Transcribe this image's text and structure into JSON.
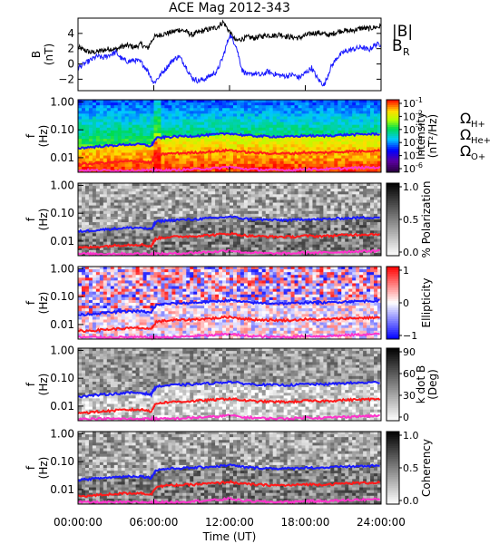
{
  "title": "ACE Mag 2012-343",
  "x_axis": {
    "label": "Time (UT)",
    "ticks": [
      "00:00:00",
      "06:00:00",
      "12:00:00",
      "18:00:00",
      "24:00:00"
    ],
    "tick_hours": [
      0,
      6,
      12,
      18,
      24
    ]
  },
  "colors": {
    "B": "#000000",
    "BR": "#1a1aff",
    "H": "#1a1aff",
    "He": "#ff1a1a",
    "O": "#ff33cc"
  },
  "chart_data": [
    {
      "type": "line",
      "name": "B",
      "ylabel": "B (nT)",
      "ylabel_parts": [
        "B",
        "(nT)"
      ],
      "ylim": [
        -3.5,
        6
      ],
      "yticks": [
        -2,
        0,
        2,
        4
      ],
      "legend": [
        {
          "text": "|B|",
          "color": "#000000"
        },
        {
          "text": "B",
          "sub": "R",
          "color": "#1a1aff"
        }
      ],
      "series": [
        {
          "name": "|B|",
          "color": "#000000",
          "x": [
            0,
            0.5,
            1,
            1.5,
            2,
            2.5,
            3,
            3.5,
            4,
            4.5,
            5,
            5.5,
            6,
            6.5,
            7,
            7.5,
            8,
            8.5,
            9,
            9.5,
            10,
            10.5,
            11,
            11.5,
            12,
            12.5,
            13,
            13.5,
            14,
            14.5,
            15,
            15.5,
            16,
            16.5,
            17,
            17.5,
            18,
            18.5,
            19,
            19.5,
            20,
            20.5,
            21,
            21.5,
            22,
            22.5,
            23,
            23.5,
            24
          ],
          "y": [
            2.2,
            1.8,
            1.5,
            1.6,
            1.8,
            2.0,
            1.9,
            2.3,
            2.4,
            2.2,
            2.6,
            2.0,
            3.5,
            3.8,
            4.0,
            4.2,
            4.5,
            4.3,
            3.8,
            4.1,
            4.4,
            4.6,
            4.8,
            5.5,
            4.2,
            3.0,
            3.3,
            3.5,
            3.4,
            3.6,
            3.8,
            3.7,
            3.9,
            3.6,
            3.5,
            3.4,
            3.7,
            4.0,
            4.1,
            3.9,
            3.8,
            4.2,
            4.4,
            4.3,
            4.5,
            4.7,
            4.6,
            4.8,
            4.9
          ]
        },
        {
          "name": "B_R",
          "color": "#1a1aff",
          "x": [
            0,
            0.5,
            1,
            1.5,
            2,
            2.5,
            3,
            3.5,
            4,
            4.5,
            5,
            5.5,
            6,
            6.5,
            7,
            7.5,
            8,
            8.5,
            9,
            9.5,
            10,
            10.5,
            11,
            11.5,
            12,
            12.5,
            13,
            13.5,
            14,
            14.5,
            15,
            15.5,
            16,
            16.5,
            17,
            17.5,
            18,
            18.5,
            19,
            19.5,
            20,
            20.5,
            21,
            21.5,
            22,
            22.5,
            23,
            23.5,
            24
          ],
          "y": [
            -0.5,
            0.0,
            0.5,
            1.0,
            0.8,
            1.2,
            1.5,
            0.6,
            0.3,
            0.5,
            0.2,
            -0.8,
            -2.5,
            -1.5,
            -0.5,
            0.5,
            1.0,
            -0.2,
            -1.8,
            -2.2,
            -2.0,
            -1.5,
            -1.0,
            1.0,
            3.8,
            2.5,
            -0.8,
            -1.5,
            -1.2,
            -1.5,
            -1.0,
            -1.3,
            -1.5,
            -1.6,
            -1.4,
            -1.8,
            -1.2,
            -0.5,
            -2.0,
            -2.8,
            -0.5,
            0.8,
            1.5,
            1.8,
            2.0,
            2.2,
            1.8,
            2.5,
            2.6
          ]
        }
      ]
    },
    {
      "type": "heatmap",
      "name": "Intensity",
      "ylabel_parts": [
        "f",
        "(Hz)"
      ],
      "ylim": [
        0.003,
        1.2
      ],
      "yscale": "log",
      "yticks": [
        1.0,
        0.1,
        0.01
      ],
      "ytick_labels": [
        "1.00",
        "0.10",
        "0.01"
      ],
      "colorbar": {
        "label": "Intensity (nT²/Hz)",
        "label_parts": [
          "Intensity",
          "(nT²/Hz)"
        ],
        "palette": "rainbow",
        "scale": "log",
        "range": [
          1e-06,
          0.1
        ],
        "ticks": [
          {
            "base": "10",
            "exp": "-1"
          },
          {
            "base": "10",
            "exp": "-2"
          },
          {
            "base": "10",
            "exp": "-3"
          },
          {
            "base": "10",
            "exp": "-4"
          },
          {
            "base": "10",
            "exp": "-5"
          },
          {
            "base": "10",
            "exp": "-6"
          }
        ]
      },
      "legend": [
        {
          "text": "Ω",
          "sub": "H+",
          "color": "#1a1aff"
        },
        {
          "text": "Ω",
          "sub": "He+",
          "color": "#ff1a1a"
        },
        {
          "text": "Ω",
          "sub": "O+",
          "color": "#ff33cc"
        }
      ]
    },
    {
      "type": "heatmap",
      "name": "% Polarization",
      "ylabel_parts": [
        "f",
        "(Hz)"
      ],
      "yscale": "log",
      "yticks": [
        1.0,
        0.1,
        0.01
      ],
      "ytick_labels": [
        "1.00",
        "0.10",
        "0.01"
      ],
      "colorbar": {
        "label": "% Polarization",
        "label_parts": [
          "% Polarization"
        ],
        "palette": "gray",
        "range": [
          0,
          1
        ],
        "ticks": [
          {
            "base": "1.0"
          },
          {
            "base": "0.5"
          },
          {
            "base": "0.0"
          }
        ]
      }
    },
    {
      "type": "heatmap",
      "name": "Ellipticity",
      "ylabel_parts": [
        "f",
        "(Hz)"
      ],
      "yscale": "log",
      "yticks": [
        1.0,
        0.1,
        0.01
      ],
      "ytick_labels": [
        "1.00",
        "0.10",
        "0.01"
      ],
      "colorbar": {
        "label": "Ellipticity",
        "label_parts": [
          "Ellipticity"
        ],
        "palette": "bwr",
        "range": [
          -1,
          1
        ],
        "ticks": [
          {
            "base": "1"
          },
          {
            "base": "0"
          },
          {
            "base": "−1"
          }
        ]
      }
    },
    {
      "type": "heatmap",
      "name": "k dot B",
      "ylabel_parts": [
        "f",
        "(Hz)"
      ],
      "yscale": "log",
      "yticks": [
        1.0,
        0.1,
        0.01
      ],
      "ytick_labels": [
        "1.00",
        "0.10",
        "0.01"
      ],
      "colorbar": {
        "label": "k dot B (Deg)",
        "label_parts": [
          "k dot B",
          "(Deg)"
        ],
        "palette": "gray_inv",
        "range": [
          0,
          90
        ],
        "ticks": [
          {
            "base": "90"
          },
          {
            "base": "60"
          },
          {
            "base": "30"
          },
          {
            "base": "0"
          }
        ]
      }
    },
    {
      "type": "heatmap",
      "name": "Coherency",
      "ylabel_parts": [
        "f",
        "(Hz)"
      ],
      "yscale": "log",
      "yticks": [
        1.0,
        0.1,
        0.01
      ],
      "ytick_labels": [
        "1.00",
        "0.10",
        "0.01"
      ],
      "colorbar": {
        "label": "Coherency",
        "label_parts": [
          "Coherency"
        ],
        "palette": "gray",
        "range": [
          0,
          1
        ],
        "ticks": [
          {
            "base": "1.0"
          },
          {
            "base": "0.5"
          },
          {
            "base": "0.0"
          }
        ]
      }
    }
  ],
  "gyrofrequency_overlays": {
    "x": [
      0,
      1,
      2,
      3,
      4,
      5,
      5.8,
      6.2,
      7,
      8,
      9,
      10,
      11,
      12,
      13,
      14,
      15,
      16,
      17,
      18,
      19,
      20,
      21,
      22,
      23,
      24
    ],
    "H": [
      0.022,
      0.024,
      0.026,
      0.028,
      0.03,
      0.03,
      0.026,
      0.05,
      0.055,
      0.058,
      0.06,
      0.064,
      0.068,
      0.075,
      0.065,
      0.06,
      0.058,
      0.057,
      0.057,
      0.062,
      0.06,
      0.062,
      0.066,
      0.068,
      0.07,
      0.072
    ],
    "He": [
      0.0058,
      0.006,
      0.0065,
      0.007,
      0.0074,
      0.0075,
      0.0065,
      0.0125,
      0.0138,
      0.0145,
      0.015,
      0.016,
      0.017,
      0.0188,
      0.0162,
      0.015,
      0.0145,
      0.0142,
      0.0142,
      0.0155,
      0.015,
      0.0155,
      0.0165,
      0.017,
      0.0175,
      0.018
    ],
    "O": [
      0.0035,
      0.0035,
      0.0035,
      0.0035,
      0.0035,
      0.0035,
      0.0035,
      0.0035,
      0.0035,
      0.0036,
      0.0038,
      0.004,
      0.0042,
      0.0047,
      0.004,
      0.0038,
      0.0036,
      0.0036,
      0.0036,
      0.0039,
      0.0038,
      0.0039,
      0.0041,
      0.0043,
      0.0044,
      0.0045
    ]
  }
}
